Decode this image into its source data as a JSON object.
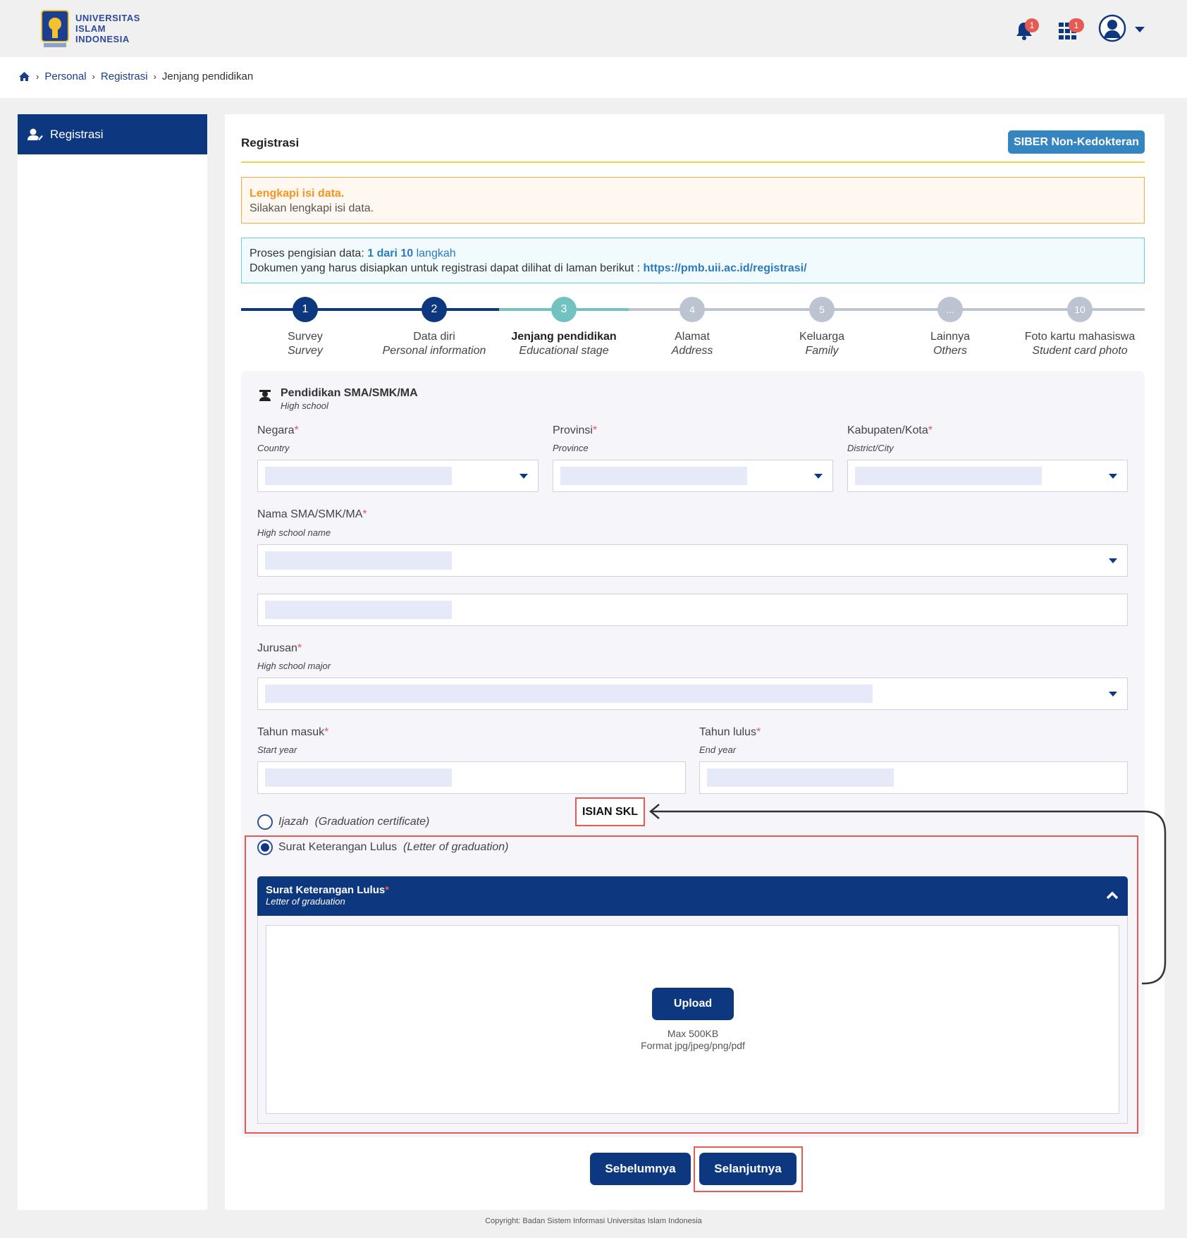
{
  "header": {
    "logo_text": [
      "UNIVERSITAS",
      "ISLAM",
      "INDONESIA"
    ],
    "notifications_count": "1",
    "apps_count": "1"
  },
  "breadcrumb": {
    "items": [
      "Personal",
      "Registrasi"
    ],
    "current": "Jenjang pendidikan"
  },
  "sidebar": {
    "items": [
      {
        "label": "Registrasi",
        "icon": "user-edit-icon"
      }
    ]
  },
  "main": {
    "title": "Registrasi",
    "siber_button": "SIBER Non-Kedokteran",
    "warning": {
      "title": "Lengkapi isi data.",
      "text": "Silakan lengkapi isi data."
    },
    "info": {
      "progress_prefix": "Proses pengisian data: ",
      "progress_value": "1 dari 10",
      "progress_suffix": " langkah",
      "docs_text": "Dokumen yang harus disiapkan untuk registrasi dapat dilihat di laman berikut : ",
      "docs_link": "https://pmb.uii.ac.id/registrasi/"
    },
    "steps": [
      {
        "num": "1",
        "label": "Survey",
        "sub": "Survey",
        "state": "done"
      },
      {
        "num": "2",
        "label": "Data diri",
        "sub": "Personal information",
        "state": "done"
      },
      {
        "num": "3",
        "label": "Jenjang pendidikan",
        "sub": "Educational stage",
        "state": "active"
      },
      {
        "num": "4",
        "label": "Alamat",
        "sub": "Address",
        "state": "pending"
      },
      {
        "num": "5",
        "label": "Keluarga",
        "sub": "Family",
        "state": "pending"
      },
      {
        "num": "...",
        "label": "Lainnya",
        "sub": "Others",
        "state": "pending"
      },
      {
        "num": "10",
        "label": "Foto kartu mahasiswa",
        "sub": "Student card photo",
        "state": "pending"
      }
    ],
    "section": {
      "title": "Pendidikan SMA/SMK/MA",
      "sub": "High school"
    },
    "fields": {
      "country": {
        "label": "Negara",
        "sub": "Country"
      },
      "province": {
        "label": "Provinsi",
        "sub": "Province"
      },
      "city": {
        "label": "Kabupaten/Kota",
        "sub": "District/City"
      },
      "school": {
        "label": "Nama SMA/SMK/MA",
        "sub": "High school name"
      },
      "major": {
        "label": "Jurusan",
        "sub": "High school major"
      },
      "start_year": {
        "label": "Tahun masuk",
        "sub": "Start year"
      },
      "end_year": {
        "label": "Tahun lulus",
        "sub": "End year"
      }
    },
    "required_mark": "*",
    "doc_options": [
      {
        "label": "Ijazah",
        "sub": "(Graduation certificate)",
        "selected": false
      },
      {
        "label": "Surat Keterangan Lulus",
        "sub": "(Letter of graduation)",
        "selected": true
      }
    ],
    "annotation": "ISIAN SKL",
    "skl_panel": {
      "title": "Surat Keterangan Lulus",
      "sub": "Letter of graduation",
      "upload": "Upload",
      "max": "Max 500KB",
      "format": "Format jpg/jpeg/png/pdf"
    },
    "prev_button": "Sebelumnya",
    "next_button": "Selanjutnya"
  },
  "footer": "Copyright: Badan Sistem Informasi Universitas Islam Indonesia",
  "colors": {
    "primary": "#0d3880",
    "active_step": "#72c2c0",
    "pending_step": "#bcc3d1",
    "warning": "#f7941d",
    "link": "#2a7bbf",
    "annotation": "#e55a52"
  }
}
